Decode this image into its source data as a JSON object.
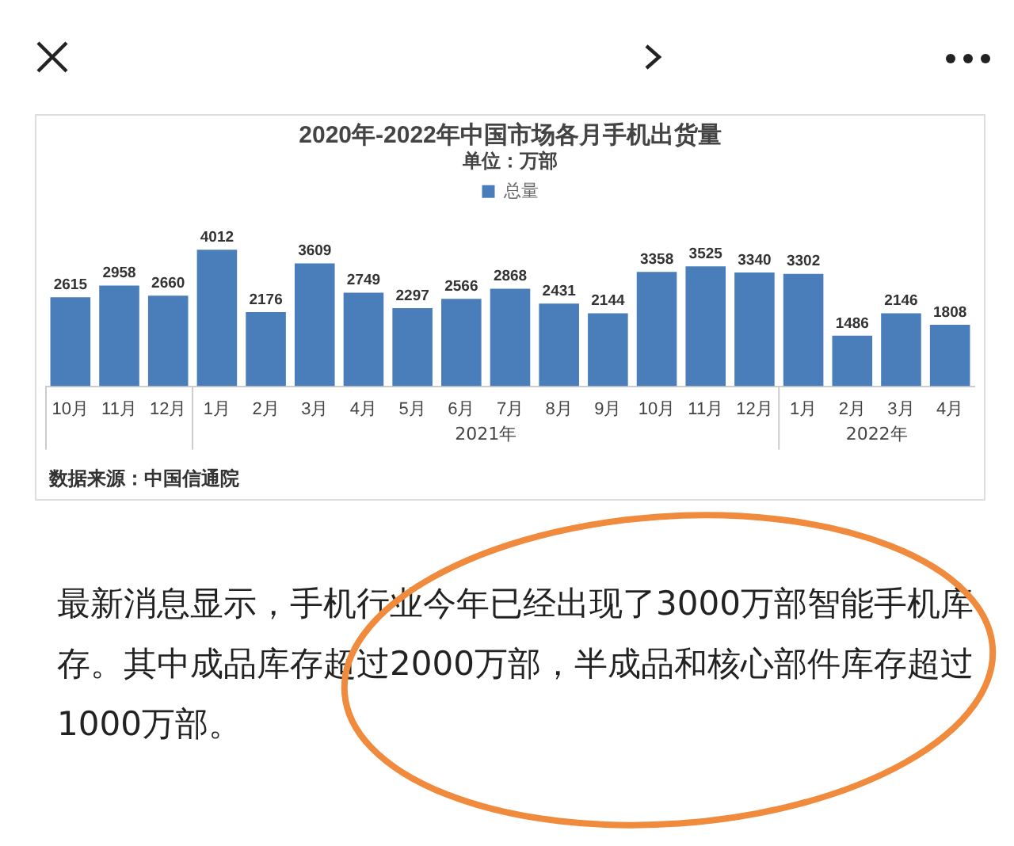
{
  "chart_data": {
    "type": "bar",
    "title": "2020年-2022年中国市场各月手机出货量",
    "subtitle": "单位：万部",
    "categories": [
      "10月",
      "11月",
      "12月",
      "1月",
      "2月",
      "3月",
      "4月",
      "5月",
      "6月",
      "7月",
      "8月",
      "9月",
      "10月",
      "11月",
      "12月",
      "1月",
      "2月",
      "3月",
      "4月"
    ],
    "series": [
      {
        "name": "总量",
        "color": "#4a7ebb",
        "values": [
          2615,
          2958,
          2660,
          4012,
          2176,
          3609,
          2749,
          2297,
          2566,
          2868,
          2431,
          2144,
          3358,
          3525,
          3340,
          3302,
          1486,
          2146,
          1808
        ]
      }
    ],
    "data_labels": true,
    "legend": "top",
    "grid": false,
    "tick_labels": "x",
    "annotations": [
      "2021年",
      "2022年",
      "数据来源：中国信通院",
      "最新消息显示，手机行业今年已经出现了3000万部智能手机库存。其中成品库存超过2000万部，半成品和核心部件库存超过1000万部。"
    ]
  }
}
